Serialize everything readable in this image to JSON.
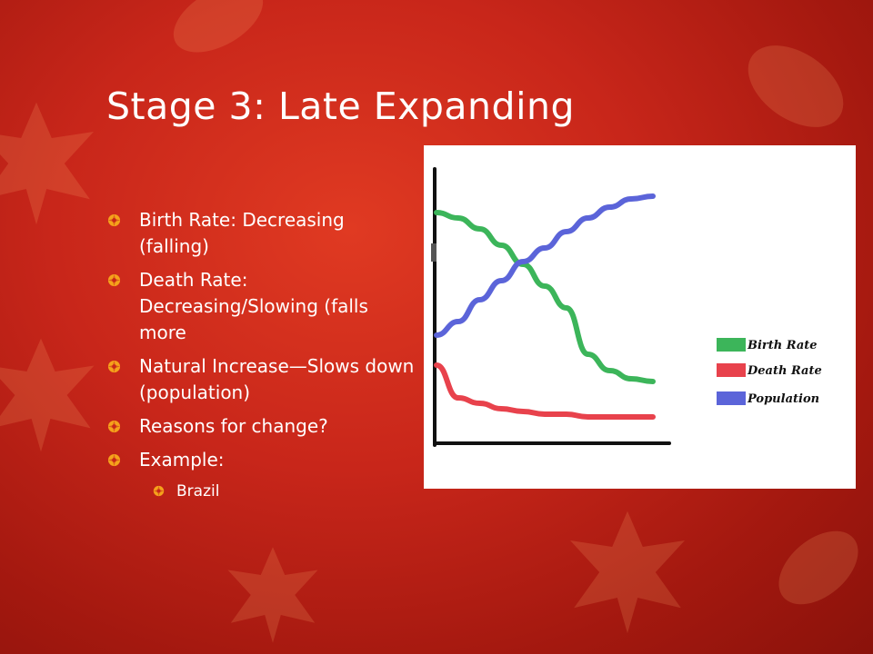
{
  "slide": {
    "title": "Stage 3: Late Expanding",
    "bullet_icon": "pinwheel-bullet-icon",
    "accent_color": "#f5a21b",
    "bullets": [
      {
        "text": "Birth Rate: Decreasing (falling)"
      },
      {
        "text": "Death Rate: Decreasing/Slowing (falls more"
      },
      {
        "text": "Natural Increase—Slows down (population)"
      },
      {
        "text": "Reasons for change?"
      },
      {
        "text": "Example:",
        "sub": [
          "Brazil"
        ]
      }
    ]
  },
  "chart_data": {
    "type": "line",
    "title": "",
    "xlabel": "",
    "ylabel": "",
    "x": [
      0,
      1,
      2,
      3,
      4,
      5,
      6,
      7,
      8,
      9,
      10
    ],
    "series": [
      {
        "name": "Birth Rate",
        "color": "#3cb55a",
        "values": [
          82,
          80,
          76,
          70,
          63,
          55,
          47,
          30,
          24,
          21,
          20
        ]
      },
      {
        "name": "Death Rate",
        "color": "#e8424c",
        "values": [
          26,
          14,
          12,
          10,
          9,
          8,
          8,
          7,
          7,
          7,
          7
        ]
      },
      {
        "name": "Population",
        "color": "#5b64d9",
        "values": [
          37,
          42,
          50,
          57,
          64,
          69,
          75,
          80,
          84,
          87,
          88
        ]
      }
    ],
    "ylim": [
      0,
      100
    ],
    "legend": "right",
    "grid": false
  }
}
